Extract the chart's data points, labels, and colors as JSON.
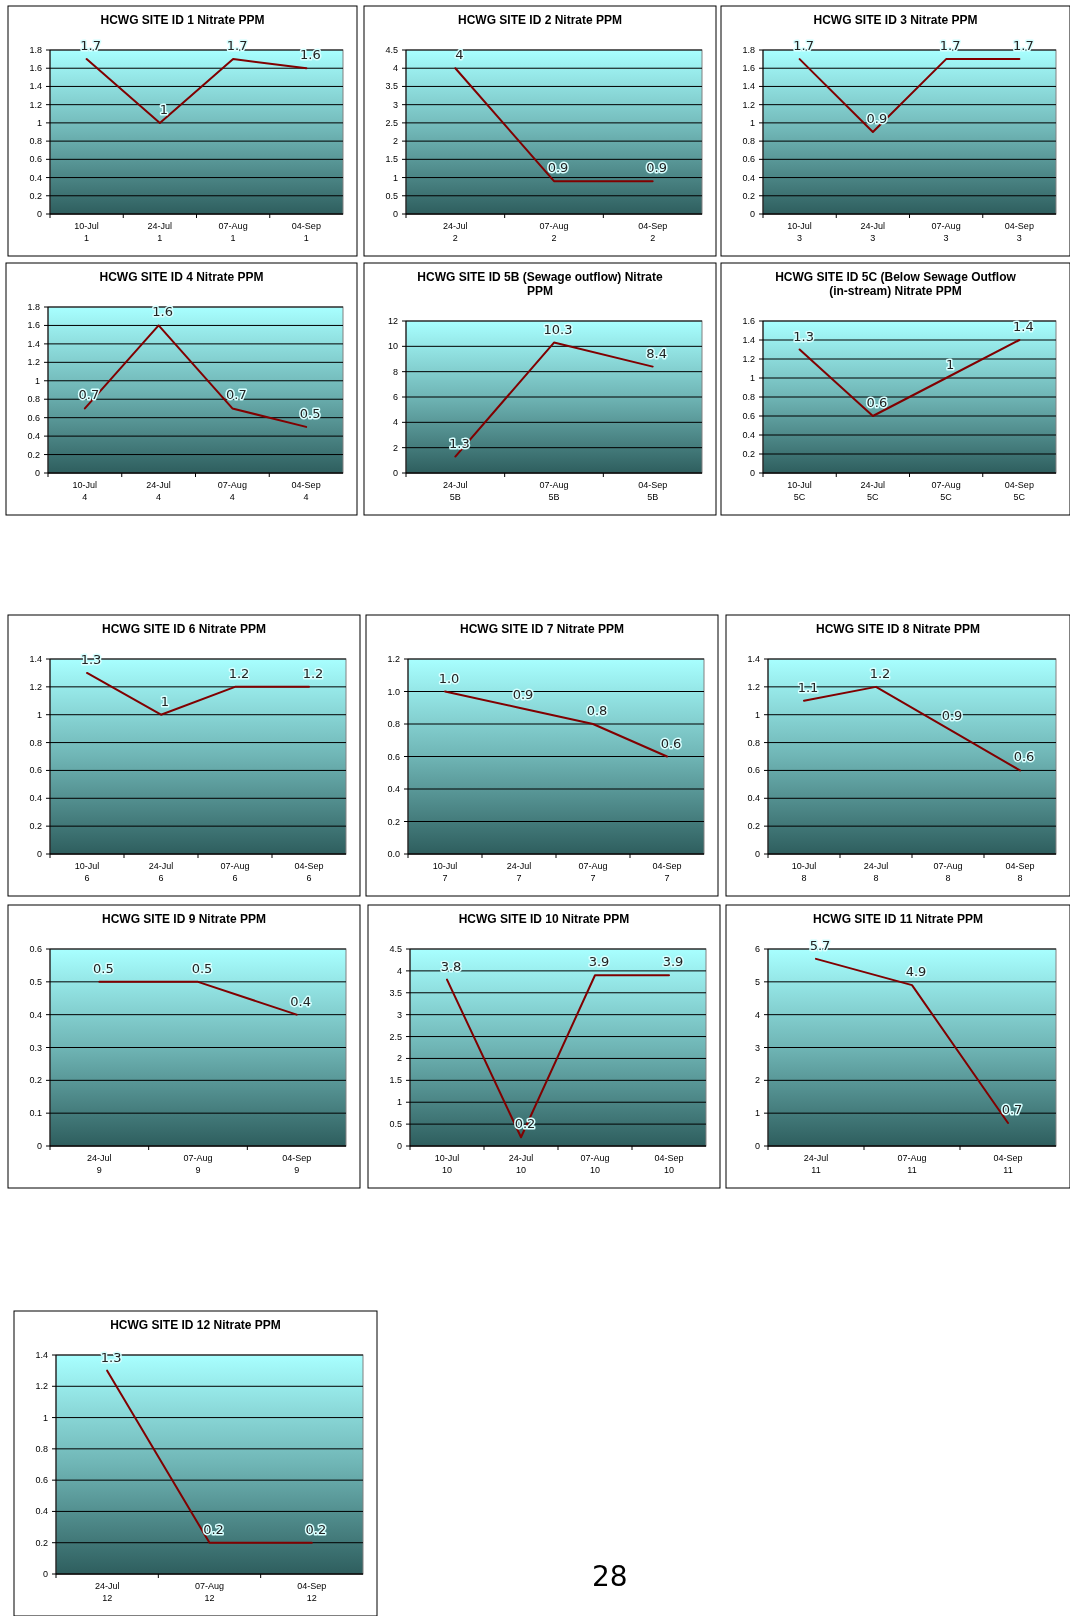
{
  "chart_data": [
    {
      "type": "line",
      "title": "HCWG SITE ID 1 Nitrate PPM",
      "categories": [
        "10-Jul\n1",
        "24-Jul\n1",
        "07-Aug\n1",
        "04-Sep\n1"
      ],
      "series": [
        {
          "color": "#800000",
          "values": [
            1.7,
            1,
            1.7,
            1.6
          ],
          "value_labels": [
            "1.7",
            "1",
            "1.7",
            "1.6"
          ]
        }
      ],
      "ylim": [
        0,
        1.8
      ],
      "yticks": [
        0,
        0.2,
        0.4,
        0.6,
        0.8,
        1,
        1.2,
        1.4,
        1.6,
        1.8
      ],
      "grid": "y"
    },
    {
      "type": "line",
      "title": "HCWG SITE ID 2 Nitrate PPM",
      "categories": [
        "24-Jul\n2",
        "07-Aug\n2",
        "04-Sep\n2"
      ],
      "series": [
        {
          "color": "#800000",
          "values": [
            4,
            0.9,
            0.9
          ],
          "value_labels": [
            "4",
            "0.9",
            "0.9"
          ]
        }
      ],
      "ylim": [
        0,
        4.5
      ],
      "yticks": [
        0,
        0.5,
        1,
        1.5,
        2,
        2.5,
        3,
        3.5,
        4,
        4.5
      ],
      "grid": "y"
    },
    {
      "type": "line",
      "title": "HCWG SITE ID 3 Nitrate PPM",
      "categories": [
        "10-Jul\n3",
        "24-Jul\n3",
        "07-Aug\n3",
        "04-Sep\n3"
      ],
      "series": [
        {
          "color": "#800000",
          "values": [
            1.7,
            0.9,
            1.7,
            1.7
          ],
          "value_labels": [
            "1.7",
            "0.9",
            "1.7",
            "1.7"
          ]
        }
      ],
      "ylim": [
        0,
        1.8
      ],
      "yticks": [
        0,
        0.2,
        0.4,
        0.6,
        0.8,
        1,
        1.2,
        1.4,
        1.6,
        1.8
      ],
      "grid": "y"
    },
    {
      "type": "line",
      "title": "HCWG SITE ID 4 Nitrate PPM",
      "categories": [
        "10-Jul\n4",
        "24-Jul\n4",
        "07-Aug\n4",
        "04-Sep\n4"
      ],
      "series": [
        {
          "color": "#800000",
          "values": [
            0.7,
            1.6,
            0.7,
            0.5
          ],
          "value_labels": [
            "0.7",
            "1.6",
            "0.7",
            "0.5"
          ]
        }
      ],
      "ylim": [
        0,
        1.8
      ],
      "yticks": [
        0,
        0.2,
        0.4,
        0.6,
        0.8,
        1,
        1.2,
        1.4,
        1.6,
        1.8
      ],
      "grid": "y"
    },
    {
      "type": "line",
      "title": "HCWG SITE ID 5B (Sewage outflow) Nitrate PPM",
      "categories": [
        "24-Jul\n5B",
        "07-Aug\n5B",
        "04-Sep\n5B"
      ],
      "series": [
        {
          "color": "#800000",
          "values": [
            1.3,
            10.3,
            8.4
          ],
          "value_labels": [
            "1.3",
            "10.3",
            "8.4"
          ]
        }
      ],
      "ylim": [
        0,
        12
      ],
      "yticks": [
        0,
        2,
        4,
        6,
        8,
        10,
        12
      ],
      "grid": "y"
    },
    {
      "type": "line",
      "title": "HCWG SITE ID 5C (Below Sewage Outflow (in-stream)  Nitrate PPM",
      "categories": [
        "10-Jul\n5C",
        "24-Jul\n5C",
        "07-Aug\n5C",
        "04-Sep\n5C"
      ],
      "series": [
        {
          "color": "#800000",
          "values": [
            1.3,
            0.6,
            1,
            1.4
          ],
          "value_labels": [
            "1.3",
            "0.6",
            "1",
            "1.4"
          ]
        }
      ],
      "ylim": [
        0,
        1.6
      ],
      "yticks": [
        0,
        0.2,
        0.4,
        0.6,
        0.8,
        1,
        1.2,
        1.4,
        1.6
      ],
      "grid": "y"
    },
    {
      "type": "line",
      "title": "HCWG SITE ID 6 Nitrate PPM",
      "categories": [
        "10-Jul\n6",
        "24-Jul\n6",
        "07-Aug\n6",
        "04-Sep\n6"
      ],
      "series": [
        {
          "color": "#800000",
          "values": [
            1.3,
            1,
            1.2,
            1.2
          ],
          "value_labels": [
            "1.3",
            "1",
            "1.2",
            "1.2"
          ]
        }
      ],
      "ylim": [
        0,
        1.4
      ],
      "yticks": [
        0,
        0.2,
        0.4,
        0.6,
        0.8,
        1,
        1.2,
        1.4
      ],
      "grid": "y"
    },
    {
      "type": "line",
      "title": "HCWG SITE ID 7 Nitrate PPM",
      "categories": [
        "10-Jul\n7",
        "24-Jul\n7",
        "07-Aug\n7",
        "04-Sep\n7"
      ],
      "series": [
        {
          "color": "#800000",
          "values": [
            1,
            0.9,
            0.8,
            0.6
          ],
          "value_labels": [
            "1.0",
            "0.9",
            "0.8",
            "0.6"
          ]
        }
      ],
      "ylim": [
        0,
        1.2
      ],
      "yticks": [
        {
          "value": 0,
          "label": "0.0"
        },
        0.2,
        0.4,
        0.6,
        0.8,
        {
          "value": 1,
          "label": "1.0"
        },
        1.2
      ],
      "grid": "y"
    },
    {
      "type": "line",
      "title": "HCWG SITE ID 8 Nitrate PPM",
      "categories": [
        "10-Jul\n8",
        "24-Jul\n8",
        "07-Aug\n8",
        "04-Sep\n8"
      ],
      "series": [
        {
          "color": "#800000",
          "values": [
            1.1,
            1.2,
            0.9,
            0.6
          ],
          "value_labels": [
            "1.1",
            "1.2",
            "0.9",
            "0.6"
          ]
        }
      ],
      "ylim": [
        0,
        1.4
      ],
      "yticks": [
        0,
        0.2,
        0.4,
        0.6,
        0.8,
        1,
        1.2,
        1.4
      ],
      "grid": "y"
    },
    {
      "type": "line",
      "title": "HCWG SITE ID 9 Nitrate PPM",
      "categories": [
        "24-Jul\n9",
        "07-Aug\n9",
        "04-Sep\n9"
      ],
      "series": [
        {
          "color": "#800000",
          "values": [
            0.5,
            0.5,
            0.4
          ],
          "value_labels": [
            "0.5",
            "0.5",
            "0.4"
          ]
        }
      ],
      "ylim": [
        0,
        0.6
      ],
      "yticks": [
        0,
        0.1,
        0.2,
        0.3,
        0.4,
        0.5,
        0.6
      ],
      "grid": "y"
    },
    {
      "type": "line",
      "title": "HCWG SITE ID 10 Nitrate PPM",
      "categories": [
        "10-Jul\n10",
        "24-Jul\n10",
        "07-Aug\n10",
        "04-Sep\n10"
      ],
      "series": [
        {
          "color": "#800000",
          "values": [
            3.8,
            0.2,
            3.9,
            3.9
          ],
          "value_labels": [
            "3.8",
            "0.2",
            "3.9",
            "3.9"
          ]
        }
      ],
      "ylim": [
        0,
        4.5
      ],
      "yticks": [
        0,
        0.5,
        1,
        1.5,
        2,
        2.5,
        3,
        3.5,
        4,
        4.5
      ],
      "grid": "y"
    },
    {
      "type": "line",
      "title": "HCWG SITE ID 11 Nitrate PPM",
      "categories": [
        "24-Jul\n11",
        "07-Aug\n11",
        "04-Sep\n11"
      ],
      "series": [
        {
          "color": "#800000",
          "values": [
            5.7,
            4.9,
            0.7
          ],
          "value_labels": [
            "5.7",
            "4.9",
            "0.7"
          ]
        }
      ],
      "ylim": [
        0,
        6
      ],
      "yticks": [
        0,
        1,
        2,
        3,
        4,
        5,
        6
      ],
      "grid": "y"
    },
    {
      "type": "line",
      "title": "HCWG SITE ID 12 Nitrate PPM",
      "categories": [
        "24-Jul\n12",
        "07-Aug\n12",
        "04-Sep\n12"
      ],
      "series": [
        {
          "color": "#800000",
          "values": [
            1.3,
            0.2,
            0.2
          ],
          "value_labels": [
            "1.3",
            "0.2",
            "0.2"
          ]
        }
      ],
      "ylim": [
        0,
        1.4
      ],
      "yticks": [
        0,
        0.2,
        0.4,
        0.6,
        0.8,
        1,
        1.2,
        1.4
      ],
      "grid": "y",
      "annotations": [
        "28"
      ]
    }
  ]
}
